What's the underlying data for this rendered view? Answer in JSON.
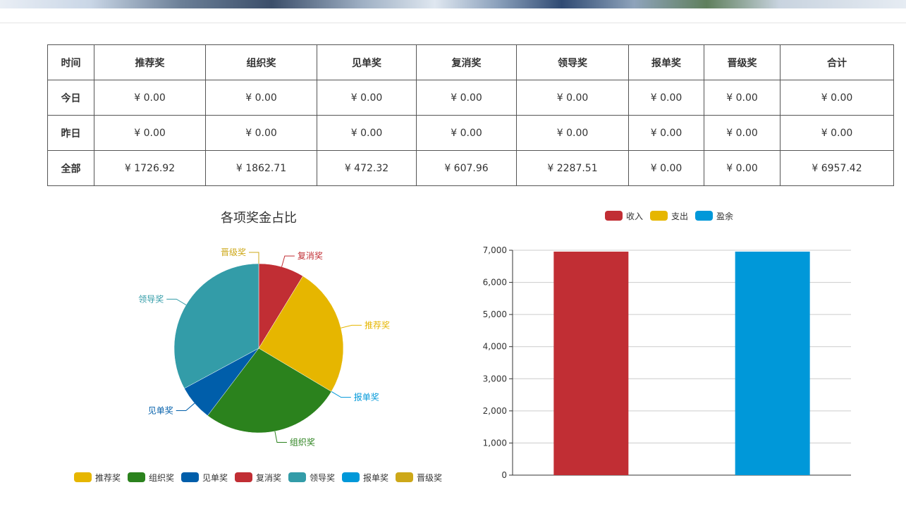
{
  "table": {
    "headers": [
      "时间",
      "推荐奖",
      "组织奖",
      "见单奖",
      "复消奖",
      "领导奖",
      "报单奖",
      "晋级奖",
      "合计"
    ],
    "rows": [
      {
        "label": "今日",
        "cells": [
          "¥ 0.00",
          "¥ 0.00",
          "¥ 0.00",
          "¥ 0.00",
          "¥ 0.00",
          "¥ 0.00",
          "¥ 0.00",
          "¥ 0.00"
        ]
      },
      {
        "label": "昨日",
        "cells": [
          "¥ 0.00",
          "¥ 0.00",
          "¥ 0.00",
          "¥ 0.00",
          "¥ 0.00",
          "¥ 0.00",
          "¥ 0.00",
          "¥ 0.00"
        ]
      },
      {
        "label": "全部",
        "cells": [
          "¥ 1726.92",
          "¥ 1862.71",
          "¥ 472.32",
          "¥ 607.96",
          "¥ 2287.51",
          "¥ 0.00",
          "¥ 0.00",
          "¥ 6957.42"
        ]
      }
    ]
  },
  "chart_data": [
    {
      "type": "pie",
      "title": "各项奖金占比",
      "legend_position": "bottom",
      "slices": [
        {
          "name": "推荐奖",
          "value": 1726.92,
          "color": "#e6b600"
        },
        {
          "name": "组织奖",
          "value": 1862.71,
          "color": "#2b821d"
        },
        {
          "name": "见单奖",
          "value": 472.32,
          "color": "#005eaa"
        },
        {
          "name": "复消奖",
          "value": 607.96,
          "color": "#c12e34"
        },
        {
          "name": "领导奖",
          "value": 2287.51,
          "color": "#339ca8"
        },
        {
          "name": "报单奖",
          "value": 0,
          "color": "#0098d9"
        },
        {
          "name": "晋级奖",
          "value": 0,
          "color": "#cda819"
        }
      ],
      "draw_order": [
        "复消奖",
        "推荐奖",
        "报单奖",
        "组织奖",
        "见单奖",
        "领导奖",
        "晋级奖"
      ]
    },
    {
      "type": "bar",
      "title": "",
      "legend_position": "top",
      "categories": [
        "收入",
        "支出",
        "盈余"
      ],
      "colors": [
        "#c12e34",
        "#e6b600",
        "#0098d9"
      ],
      "values": [
        6957.42,
        0,
        6957.42
      ],
      "ylim": [
        0,
        7000
      ],
      "yticks": [
        "0",
        "1,000",
        "2,000",
        "3,000",
        "4,000",
        "5,000",
        "6,000",
        "7,000"
      ],
      "grid": true
    }
  ]
}
